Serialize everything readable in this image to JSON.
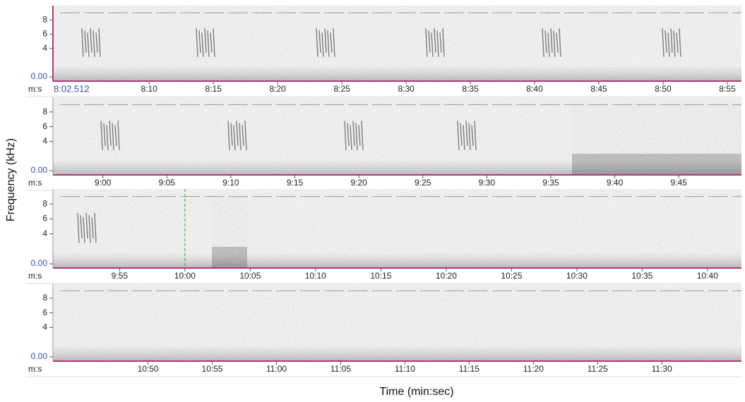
{
  "ylabel": "Frequency (kHz)",
  "xlabel": "Time (min:sec)",
  "chart_data": [
    {
      "type": "spectrogram",
      "start_label": "8:02.512",
      "x_unit": "m:s",
      "xlim": [
        482.512,
        536.1
      ],
      "ylim": [
        0,
        10
      ],
      "yticks": [
        {
          "value": 0,
          "label": "0.00"
        },
        4,
        6,
        8
      ],
      "xticks": [
        {
          "value": 490,
          "label": "8:10"
        },
        {
          "value": 495,
          "label": "8:15"
        },
        {
          "value": 500,
          "label": "8:20"
        },
        {
          "value": 505,
          "label": "8:25"
        },
        {
          "value": 510,
          "label": "8:30"
        },
        {
          "value": 515,
          "label": "8:35"
        },
        {
          "value": 520,
          "label": "8:40"
        },
        {
          "value": 525,
          "label": "8:45"
        },
        {
          "value": 530,
          "label": "8:50"
        },
        {
          "value": 535,
          "label": "8:55"
        }
      ]
    },
    {
      "type": "spectrogram",
      "x_unit": "m:s",
      "xlim": [
        536.1,
        589.9
      ],
      "ylim": [
        0,
        10
      ],
      "yticks": [
        {
          "value": 0,
          "label": "0.00"
        },
        4,
        6,
        8
      ],
      "xticks": [
        {
          "value": 540,
          "label": "9:00"
        },
        {
          "value": 545,
          "label": "9:05"
        },
        {
          "value": 550,
          "label": "9:10"
        },
        {
          "value": 555,
          "label": "9:15"
        },
        {
          "value": 560,
          "label": "9:20"
        },
        {
          "value": 565,
          "label": "9:25"
        },
        {
          "value": 570,
          "label": "9:30"
        },
        {
          "value": 575,
          "label": "9:35"
        },
        {
          "value": 580,
          "label": "9:40"
        },
        {
          "value": 585,
          "label": "9:45"
        }
      ]
    },
    {
      "type": "spectrogram",
      "x_unit": "m:s",
      "cursor_x": 600,
      "xlim": [
        589.9,
        642.6
      ],
      "ylim": [
        0,
        10
      ],
      "yticks": [
        {
          "value": 0,
          "label": "0.00"
        },
        4,
        6,
        8
      ],
      "xticks": [
        {
          "value": 595,
          "label": "9:55"
        },
        {
          "value": 600,
          "label": "10:00"
        },
        {
          "value": 605,
          "label": "10:05"
        },
        {
          "value": 610,
          "label": "10:10"
        },
        {
          "value": 615,
          "label": "10:15"
        },
        {
          "value": 620,
          "label": "10:20"
        },
        {
          "value": 625,
          "label": "10:25"
        },
        {
          "value": 630,
          "label": "10:30"
        },
        {
          "value": 635,
          "label": "10:35"
        },
        {
          "value": 640,
          "label": "10:40"
        }
      ]
    },
    {
      "type": "spectrogram",
      "x_unit": "m:s",
      "xlim": [
        642.6,
        696.2
      ],
      "ylim": [
        0,
        10
      ],
      "yticks": [
        {
          "value": 0,
          "label": "0.00"
        },
        4,
        6,
        8
      ],
      "xticks": [
        {
          "value": 650,
          "label": "10:50"
        },
        {
          "value": 655,
          "label": "10:55"
        },
        {
          "value": 660,
          "label": "11:00"
        },
        {
          "value": 665,
          "label": "11:05"
        },
        {
          "value": 670,
          "label": "11:10"
        },
        {
          "value": 675,
          "label": "11:15"
        },
        {
          "value": 680,
          "label": "11:20"
        },
        {
          "value": 685,
          "label": "11:25"
        },
        {
          "value": 690,
          "label": "11:30"
        }
      ]
    }
  ]
}
